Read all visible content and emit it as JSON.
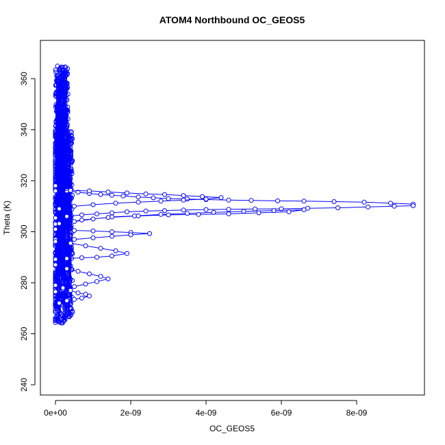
{
  "chart_data": {
    "type": "scatter",
    "title": "ATOM4 Northbound OC_GEOS5",
    "xlabel": "OC_GEOS5",
    "ylabel": "Theta (K)",
    "xlim": [
      -4e-10,
      9.8e-09
    ],
    "ylim": [
      236,
      375
    ],
    "x_ticks": [
      {
        "value": 0,
        "label": "0e+00"
      },
      {
        "value": 2e-09,
        "label": "2e-09"
      },
      {
        "value": 4e-09,
        "label": "4e-09"
      },
      {
        "value": 6e-09,
        "label": "6e-09"
      },
      {
        "value": 8e-09,
        "label": "8e-09"
      }
    ],
    "y_ticks": [
      {
        "value": 240,
        "label": "240"
      },
      {
        "value": 260,
        "label": "260"
      },
      {
        "value": 280,
        "label": "280"
      },
      {
        "value": 300,
        "label": "300"
      },
      {
        "value": 320,
        "label": "320"
      },
      {
        "value": 340,
        "label": "340"
      },
      {
        "value": 360,
        "label": "360"
      }
    ],
    "grid": false,
    "legend": "none",
    "marker": "open-circle",
    "connected": true,
    "color": "#0000ff",
    "profiles": [
      {
        "x": [
          0.0,
          3e-10,
          6e-10,
          9e-10,
          1.2e-09,
          1.5e-09,
          1.8e-09,
          2.2e-09,
          2.6e-09,
          3e-09,
          3.5e-09,
          4e-09,
          4.6e-09,
          5.2e-09,
          5.9e-09,
          6.6e-09,
          7.4e-09,
          8.2e-09,
          8.9e-09,
          9.5e-09
        ],
        "y": [
          318,
          316,
          315.5,
          315,
          314.6,
          314.3,
          314.0,
          313.6,
          313.3,
          313.0,
          312.8,
          312.6,
          312.4,
          312.3,
          312.1,
          312.0,
          311.8,
          311.6,
          311.2,
          310.8
        ]
      },
      {
        "x": [
          9.5e-09,
          9e-09,
          8.3e-09,
          7.5e-09,
          6.7e-09,
          6e-09,
          5.3e-09,
          4.6e-09,
          4e-09,
          3.4e-09,
          2.9e-09,
          2.4e-09,
          1.9e-09,
          1.5e-09,
          1.1e-09,
          7e-10,
          3e-10,
          0.0
        ],
        "y": [
          310.2,
          310.0,
          309.7,
          309.4,
          309.2,
          309.0,
          308.9,
          308.8,
          308.7,
          308.5,
          308.3,
          308.1,
          307.8,
          307.4,
          307.0,
          306.6,
          306.0,
          305.4
        ]
      },
      {
        "x": [
          0.0,
          5e-10,
          1e-09,
          1.5e-09,
          2.1e-09,
          2.8e-09,
          3.5e-09,
          4.2e-09,
          5e-09,
          5.8e-09,
          6.6e-09,
          6.2e-09,
          5.4e-09,
          4.6e-09,
          3.8e-09,
          3e-09,
          2.2e-09,
          1.4e-09,
          7e-10,
          1e-10
        ],
        "y": [
          303,
          304,
          305,
          305.8,
          306.2,
          306.8,
          307.2,
          307.6,
          308.0,
          308.3,
          308.6,
          307.8,
          307.4,
          307.0,
          306.8,
          306.6,
          306.2,
          305.6,
          304.6,
          303.2
        ]
      },
      {
        "x": [
          0.0,
          4e-10,
          8e-10,
          1.2e-09,
          1.6e-09,
          1.9e-09,
          1.5e-09,
          1.1e-09,
          7e-10,
          3e-10,
          0.0
        ],
        "y": [
          297,
          295.5,
          294.5,
          293.5,
          292.5,
          291.5,
          290.5,
          290.0,
          289.8,
          289.5,
          289.2
        ]
      },
      {
        "x": [
          0.0,
          3e-10,
          6e-10,
          9e-10,
          1.2e-09,
          1.4e-09,
          1.1e-09,
          8e-10,
          5e-10,
          2e-10,
          0.0
        ],
        "y": [
          287,
          285.5,
          284.5,
          283.5,
          282.5,
          281.5,
          280.5,
          279.5,
          278.5,
          277.5,
          276.5
        ]
      },
      {
        "x": [
          0.0,
          2e-10,
          4e-10,
          6e-10,
          8e-10,
          9e-10,
          7e-10,
          5e-10,
          3e-10,
          1e-10
        ],
        "y": [
          279,
          278,
          277,
          276,
          275.5,
          274.8,
          274.0,
          273.5,
          273.0,
          272.0
        ]
      },
      {
        "x": [
          0.0,
          4e-10,
          9e-10,
          1.4e-09,
          1.9e-09,
          2.4e-09,
          2.9e-09,
          3.4e-09,
          3.9e-09,
          4.4e-09,
          4e-09,
          3.4e-09,
          2.8e-09,
          2.2e-09,
          1.6e-09,
          1e-09,
          5e-10,
          1e-10
        ],
        "y": [
          316,
          316.2,
          316.0,
          315.6,
          315.2,
          314.8,
          314.6,
          314.2,
          313.8,
          313.4,
          312.8,
          312.4,
          312.0,
          311.6,
          311.2,
          310.6,
          310.0,
          309.0
        ]
      },
      {
        "x": [
          0.0,
          5e-10,
          1e-09,
          1.5e-09,
          2e-09,
          2.5e-09,
          2e-09,
          1.5e-09,
          1e-09,
          5e-10,
          0.0
        ],
        "y": [
          301,
          300.5,
          300.3,
          300.0,
          299.7,
          299.3,
          298.8,
          298.2,
          297.6,
          297.0,
          296.2
        ]
      }
    ],
    "core": {
      "x_center": 1.5e-10,
      "x_spread": 5.5e-10,
      "y_min": 264,
      "y_max": 365
    }
  }
}
